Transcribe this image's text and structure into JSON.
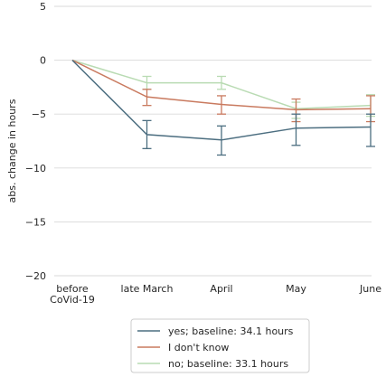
{
  "chart_data": {
    "type": "line",
    "categories": [
      "before\nCoVid-19",
      "late March",
      "April",
      "May",
      "June"
    ],
    "ylabel": "abs. change in hours",
    "xlabel": "",
    "ylim": [
      -20,
      5
    ],
    "yticks": [
      5,
      0,
      -5,
      -10,
      -15,
      -20
    ],
    "ytick_labels": [
      "5",
      "0",
      "−5",
      "−10",
      "−15",
      "−20"
    ],
    "grid": "horizontal",
    "legend_position": "bottom-center",
    "series": [
      {
        "name": "yes; baseline: 34.1 hours",
        "color": "#4c6e80",
        "values": [
          0,
          -6.9,
          -7.4,
          -6.3,
          -6.2
        ],
        "err_low": [
          null,
          -8.2,
          -8.8,
          -7.9,
          -8.0
        ],
        "err_high": [
          null,
          -5.6,
          -6.1,
          -5.0,
          -5.0
        ]
      },
      {
        "name": "I don't know",
        "color": "#c97a5f",
        "values": [
          0,
          -3.4,
          -4.1,
          -4.6,
          -4.5
        ],
        "err_low": [
          null,
          -4.2,
          -5.0,
          -5.7,
          -5.7
        ],
        "err_high": [
          null,
          -2.7,
          -3.3,
          -3.6,
          -3.3
        ]
      },
      {
        "name": "no; baseline: 33.1 hours",
        "color": "#b9dbb3",
        "values": [
          0,
          -2.1,
          -2.1,
          -4.5,
          -4.2
        ],
        "err_low": [
          null,
          -2.7,
          -2.7,
          -5.4,
          -5.2
        ],
        "err_high": [
          null,
          -1.5,
          -1.5,
          -3.9,
          -3.2
        ]
      }
    ]
  }
}
